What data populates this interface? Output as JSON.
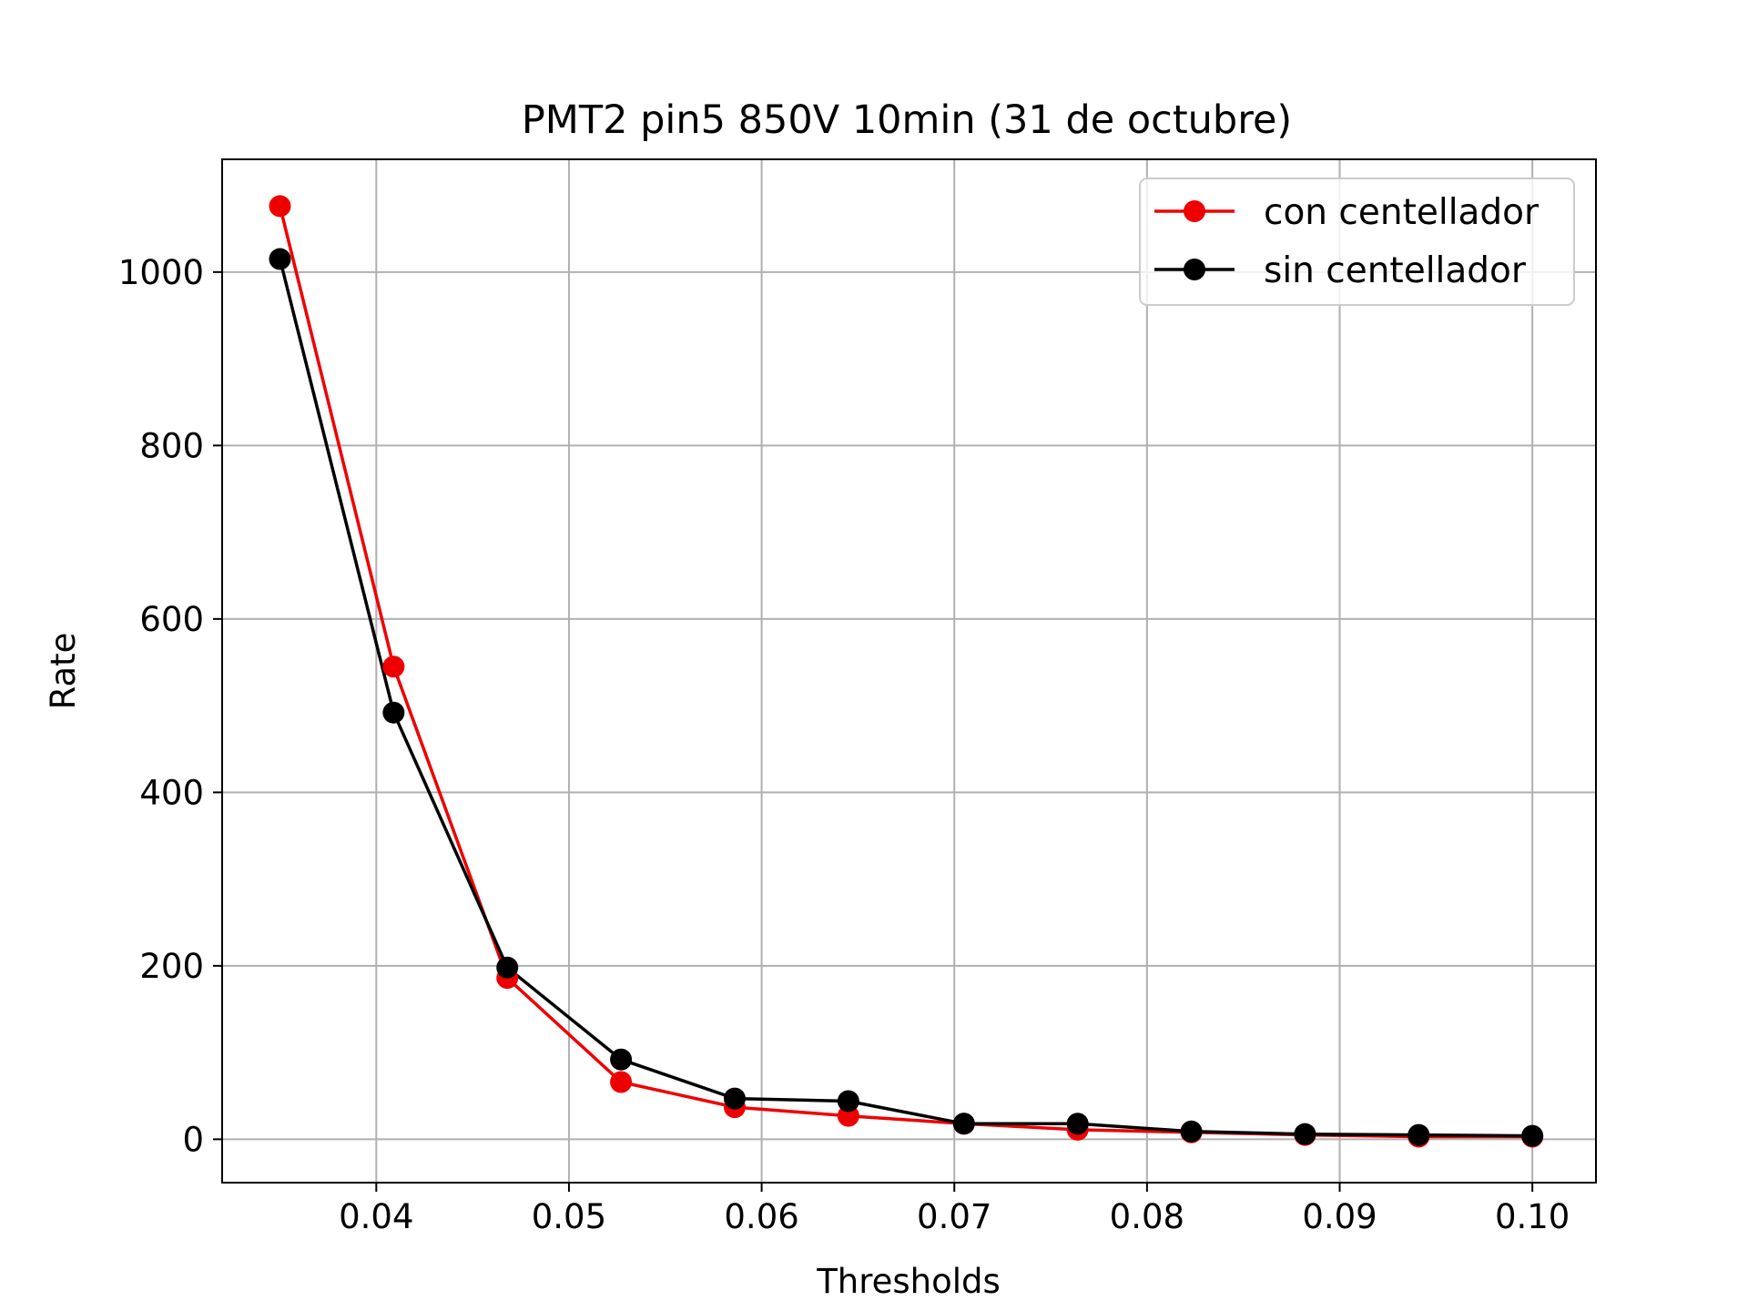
{
  "chart_data": {
    "type": "line",
    "title": "PMT2 pin5 850V 10min (31 de octubre)",
    "xlabel": "Thresholds",
    "ylabel": "Rate",
    "xlim": [
      0.032,
      0.1033
    ],
    "ylim": [
      -50,
      1130
    ],
    "xticks": [
      0.04,
      0.05,
      0.06,
      0.07,
      0.08,
      0.09,
      0.1
    ],
    "xtick_labels": [
      "0.04",
      "0.05",
      "0.06",
      "0.07",
      "0.08",
      "0.09",
      "0.10"
    ],
    "yticks": [
      0,
      200,
      400,
      600,
      800,
      1000
    ],
    "ytick_labels": [
      "0",
      "200",
      "400",
      "600",
      "800",
      "1000"
    ],
    "grid": true,
    "legend_position": "top-right",
    "x": [
      0.035,
      0.0409,
      0.0468,
      0.0527,
      0.0586,
      0.0645,
      0.0705,
      0.0764,
      0.0823,
      0.0882,
      0.0941,
      0.1
    ],
    "series": [
      {
        "name": "con centellador",
        "color": "#ee0000",
        "marker": "circle",
        "values": [
          1076,
          545,
          186,
          66,
          37,
          27,
          18,
          11,
          8,
          5,
          3,
          3
        ]
      },
      {
        "name": "sin centellador",
        "color": "#000000",
        "marker": "circle",
        "values": [
          1015,
          492,
          198,
          92,
          47,
          44,
          18,
          18,
          9,
          6,
          5,
          4
        ]
      }
    ]
  }
}
